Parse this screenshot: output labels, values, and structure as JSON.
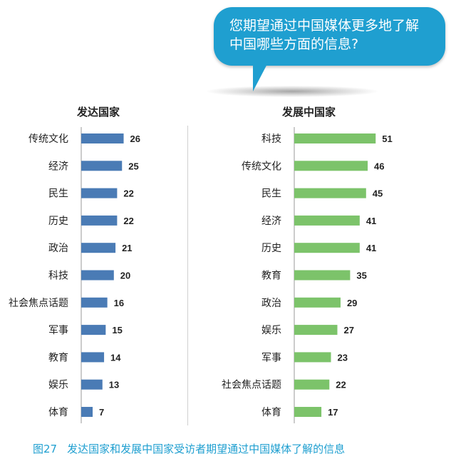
{
  "bubble": {
    "line1": "您期望通过中国媒体更多地了解",
    "line2": "中国哪些方面的信息?"
  },
  "caption": {
    "number": "图27",
    "text": "发达国家和发展中国家受访者期望通过中国媒体了解的信息"
  },
  "colors": {
    "developed_bar": "#4a7bb5",
    "developing_bar": "#7cc36a",
    "bubble": "#1f9fd0"
  },
  "chart_data": [
    {
      "type": "bar",
      "orientation": "horizontal",
      "title": "发达国家",
      "categories": [
        "传统文化",
        "经济",
        "民生",
        "历史",
        "政治",
        "科技",
        "社会焦点话题",
        "军事",
        "教育",
        "娱乐",
        "体育"
      ],
      "values": [
        26,
        25,
        22,
        22,
        21,
        20,
        16,
        15,
        14,
        13,
        7
      ]
    },
    {
      "type": "bar",
      "orientation": "horizontal",
      "title": "发展中国家",
      "categories": [
        "科技",
        "传统文化",
        "民生",
        "经济",
        "历史",
        "教育",
        "政治",
        "娱乐",
        "军事",
        "社会焦点话题",
        "体育"
      ],
      "values": [
        51,
        46,
        45,
        41,
        41,
        35,
        29,
        27,
        23,
        22,
        17
      ]
    }
  ]
}
